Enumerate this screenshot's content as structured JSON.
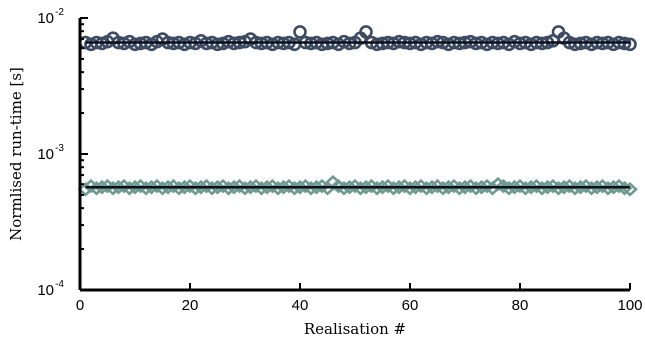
{
  "chart_data": {
    "type": "scatter",
    "title": "",
    "xlabel": "Realisation #",
    "ylabel": "Normlised run-time [s]",
    "xlim": [
      0,
      100
    ],
    "ylim": [
      0.0001,
      0.01
    ],
    "yscale": "log",
    "grid": false,
    "xticks": [
      0,
      20,
      40,
      60,
      80,
      100
    ],
    "yticks": [
      {
        "value": 0.01,
        "base": "10",
        "exp": "-2"
      },
      {
        "value": 0.001,
        "base": "10",
        "exp": "-3"
      },
      {
        "value": 0.0001,
        "base": "10",
        "exp": "-4"
      }
    ],
    "series": [
      {
        "marker": "circle",
        "color": "#3d4b63",
        "mean": 0.0066,
        "values": [
          0.0066,
          0.0064,
          0.0066,
          0.0065,
          0.0067,
          0.0071,
          0.0066,
          0.0065,
          0.0067,
          0.0064,
          0.0065,
          0.0066,
          0.0064,
          0.0067,
          0.007,
          0.0066,
          0.0065,
          0.0066,
          0.0064,
          0.0066,
          0.0065,
          0.0068,
          0.0065,
          0.0066,
          0.0064,
          0.0065,
          0.0067,
          0.0065,
          0.0066,
          0.0067,
          0.007,
          0.0066,
          0.0065,
          0.0066,
          0.0064,
          0.0066,
          0.0065,
          0.0066,
          0.0064,
          0.0079,
          0.0066,
          0.0065,
          0.0066,
          0.0064,
          0.0065,
          0.0066,
          0.0064,
          0.0067,
          0.0065,
          0.0066,
          0.0071,
          0.0079,
          0.0066,
          0.0064,
          0.0065,
          0.0066,
          0.0065,
          0.0067,
          0.0066,
          0.0065,
          0.0066,
          0.0064,
          0.0066,
          0.0065,
          0.0067,
          0.0066,
          0.0064,
          0.0066,
          0.0065,
          0.0066,
          0.0067,
          0.0065,
          0.0066,
          0.0064,
          0.0066,
          0.0065,
          0.0066,
          0.0064,
          0.0067,
          0.0065,
          0.0066,
          0.0064,
          0.0066,
          0.0065,
          0.0066,
          0.0068,
          0.0079,
          0.0071,
          0.0066,
          0.0064,
          0.0065,
          0.0066,
          0.0064,
          0.0066,
          0.0065,
          0.0066,
          0.0064,
          0.0066,
          0.0065,
          0.0064
        ]
      },
      {
        "marker": "diamond",
        "color": "#6f9a8f",
        "mean": 0.00057,
        "values": [
          0.00055,
          0.00058,
          0.00056,
          0.00057,
          0.00058,
          0.00056,
          0.00057,
          0.00058,
          0.00056,
          0.00057,
          0.00058,
          0.00056,
          0.00057,
          0.00058,
          0.00056,
          0.00057,
          0.00058,
          0.00056,
          0.00057,
          0.00058,
          0.00056,
          0.00057,
          0.00058,
          0.00056,
          0.00057,
          0.00058,
          0.00056,
          0.00057,
          0.00058,
          0.00056,
          0.00057,
          0.00058,
          0.00056,
          0.00057,
          0.00058,
          0.00056,
          0.00057,
          0.00058,
          0.00056,
          0.00057,
          0.00058,
          0.00056,
          0.00057,
          0.00058,
          0.00056,
          0.00062,
          0.00058,
          0.00056,
          0.00057,
          0.00058,
          0.00056,
          0.00057,
          0.00058,
          0.00056,
          0.00057,
          0.00058,
          0.00056,
          0.00057,
          0.00058,
          0.00056,
          0.00057,
          0.00058,
          0.00056,
          0.00057,
          0.00058,
          0.00056,
          0.00057,
          0.00058,
          0.00056,
          0.00057,
          0.00058,
          0.00056,
          0.00057,
          0.00058,
          0.00056,
          0.0006,
          0.00058,
          0.00056,
          0.00057,
          0.00058,
          0.00056,
          0.00057,
          0.00058,
          0.00056,
          0.00057,
          0.00058,
          0.00056,
          0.00057,
          0.00058,
          0.00056,
          0.00057,
          0.00058,
          0.00056,
          0.00057,
          0.00058,
          0.00056,
          0.00057,
          0.00058,
          0.00056,
          0.00055
        ]
      }
    ]
  }
}
